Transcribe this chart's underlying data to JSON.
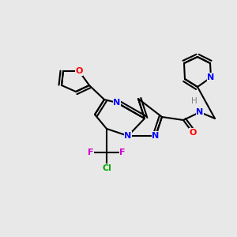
{
  "bg_color": "#e8e8e8",
  "atom_colors": {
    "N": "#0000ff",
    "O": "#ff0000",
    "F": "#cc00cc",
    "Cl": "#00aa00",
    "C": "#000000",
    "H": "#808080"
  }
}
